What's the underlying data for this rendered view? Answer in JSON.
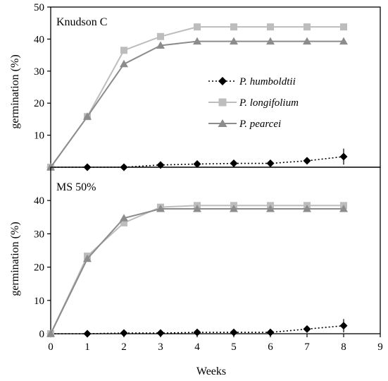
{
  "figure": {
    "x_axis_title": "Weeks",
    "y_axis_title": "germination (%)"
  },
  "legend": [
    {
      "name": "P. humboldtii",
      "color": "#000000",
      "marker": "diamond",
      "dash": "dotted"
    },
    {
      "name": "P. longifolium",
      "color": "#bdbdbd",
      "marker": "square",
      "dash": "solid"
    },
    {
      "name": "P. pearcei",
      "color": "#8c8c8c",
      "marker": "triangle",
      "dash": "solid"
    }
  ],
  "chart_data": [
    {
      "type": "line",
      "title": "Knudson C",
      "xlabel": "",
      "ylabel": "germination (%)",
      "xlim": [
        0,
        9
      ],
      "ylim": [
        0,
        50
      ],
      "x_ticks": [],
      "y_ticks": [
        10,
        20,
        30,
        40,
        50
      ],
      "x": [
        0,
        1,
        2,
        3,
        4,
        5,
        6,
        7,
        8
      ],
      "series": [
        {
          "name": "P. humboldtii",
          "values": [
            0,
            0,
            0,
            0.7,
            1.0,
            1.2,
            1.2,
            2.0,
            3.3
          ],
          "error_bar_last": 2.5
        },
        {
          "name": "P. longifolium",
          "values": [
            0,
            15.8,
            36.5,
            40.8,
            43.8,
            43.8,
            43.8,
            43.8,
            43.8
          ]
        },
        {
          "name": "P. pearcei",
          "values": [
            0,
            15.8,
            32.2,
            38.0,
            39.3,
            39.3,
            39.3,
            39.3,
            39.3
          ]
        }
      ]
    },
    {
      "type": "line",
      "title": "MS 50%",
      "xlabel": "Weeks",
      "ylabel": "germination (%)",
      "xlim": [
        0,
        9
      ],
      "ylim": [
        0,
        50
      ],
      "x_ticks": [
        0,
        1,
        2,
        3,
        4,
        5,
        6,
        7,
        8,
        9
      ],
      "y_ticks": [
        0,
        10,
        20,
        30,
        40
      ],
      "x": [
        0,
        1,
        2,
        3,
        4,
        5,
        6,
        7,
        8
      ],
      "series": [
        {
          "name": "P. humboldtii",
          "values": [
            0,
            0,
            0.2,
            0.2,
            0.4,
            0.4,
            0.4,
            1.4,
            2.4
          ],
          "error_bar_last": 2.0
        },
        {
          "name": "P. longifolium",
          "values": [
            0,
            23.3,
            33.3,
            38.0,
            38.5,
            38.5,
            38.5,
            38.5,
            38.5
          ]
        },
        {
          "name": "P. pearcei",
          "values": [
            0,
            22.5,
            34.7,
            37.5,
            37.5,
            37.5,
            37.5,
            37.5,
            37.5
          ]
        }
      ]
    }
  ]
}
